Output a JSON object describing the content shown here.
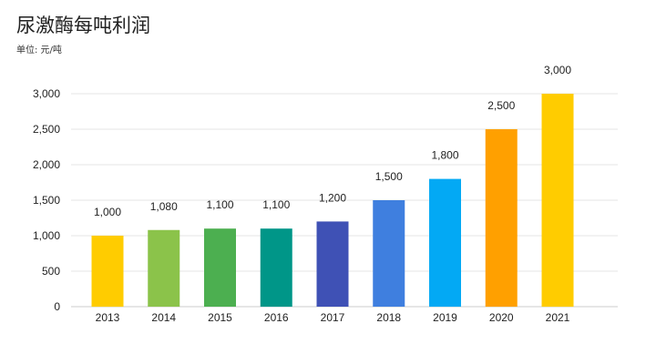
{
  "chart_data": {
    "type": "bar",
    "title": "尿激酶每吨利润",
    "subtitle": "单位: 元/吨",
    "xlabel": "",
    "ylabel": "",
    "categories": [
      "2013",
      "2014",
      "2015",
      "2016",
      "2017",
      "2018",
      "2019",
      "2020",
      "2021"
    ],
    "values": [
      1000,
      1080,
      1100,
      1100,
      1200,
      1500,
      1800,
      2500,
      3000
    ],
    "value_labels": [
      "1,000",
      "1,080",
      "1,100",
      "1,100",
      "1,200",
      "1,500",
      "1,800",
      "2,500",
      "3,000"
    ],
    "colors": [
      "#FFCC00",
      "#8BC34A",
      "#4CAF50",
      "#009688",
      "#3F51B5",
      "#3F7FDF",
      "#03A9F4",
      "#FFA000",
      "#FFCC00"
    ],
    "ylim": [
      0,
      3000
    ],
    "yticks": [
      0,
      500,
      1000,
      1500,
      2000,
      2500,
      3000
    ],
    "ytick_labels": [
      "0",
      "500",
      "1,000",
      "1,500",
      "2,000",
      "2,500",
      "3,000"
    ],
    "grid": true,
    "legend": "none"
  }
}
